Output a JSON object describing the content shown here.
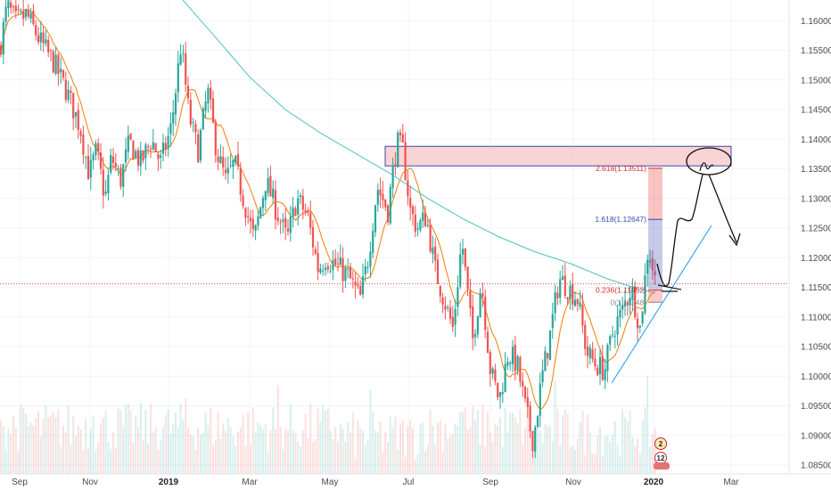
{
  "chart_data": {
    "type": "candlestick",
    "symbol_note": "",
    "y_axis": {
      "ticks": [
        1.16,
        1.155,
        1.15,
        1.145,
        1.14,
        1.135,
        1.13,
        1.125,
        1.12,
        1.115,
        1.11,
        1.105,
        1.1,
        1.095,
        1.09,
        1.085
      ],
      "labels": [
        "1.16000",
        "1.15500",
        "1.15000",
        "1.14500",
        "1.14000",
        "1.13500",
        "1.13000",
        "1.12500",
        "1.12000",
        "1.11500",
        "1.11000",
        "1.10500",
        "1.10000",
        "1.09500",
        "1.09000",
        "1.08500"
      ],
      "range": [
        1.0835,
        1.1635
      ],
      "position": "right"
    },
    "x_axis": {
      "labels": [
        "Sep",
        "Nov",
        "2019",
        "Mar",
        "May",
        "Jul",
        "Sep",
        "Nov",
        "2020",
        "Mar"
      ],
      "bold_labels": [
        "2019",
        "2020"
      ],
      "range_months": "Sep 2018 – Mar 2020"
    },
    "current_price_line": 1.1156,
    "moving_averages": [
      {
        "color": "#f57c00",
        "kind": "short"
      },
      {
        "color": "#4fc3c0",
        "kind": "long"
      }
    ],
    "price_path": [
      [
        0,
        1.1555
      ],
      [
        8,
        1.1625
      ],
      [
        18,
        1.1598
      ],
      [
        30,
        1.161
      ],
      [
        45,
        1.1565
      ],
      [
        60,
        1.153
      ],
      [
        75,
        1.148
      ],
      [
        90,
        1.142
      ],
      [
        100,
        1.134
      ],
      [
        108,
        1.138
      ],
      [
        118,
        1.13
      ],
      [
        125,
        1.137
      ],
      [
        135,
        1.133
      ],
      [
        145,
        1.1395
      ],
      [
        158,
        1.136
      ],
      [
        170,
        1.14
      ],
      [
        180,
        1.136
      ],
      [
        192,
        1.142
      ],
      [
        203,
        1.156
      ],
      [
        212,
        1.144
      ],
      [
        222,
        1.138
      ],
      [
        233,
        1.148
      ],
      [
        243,
        1.138
      ],
      [
        253,
        1.133
      ],
      [
        263,
        1.136
      ],
      [
        273,
        1.13
      ],
      [
        285,
        1.123
      ],
      [
        298,
        1.133
      ],
      [
        310,
        1.128
      ],
      [
        322,
        1.123
      ],
      [
        333,
        1.13
      ],
      [
        345,
        1.127
      ],
      [
        357,
        1.118
      ],
      [
        365,
        1.12
      ],
      [
        375,
        1.119
      ],
      [
        390,
        1.117
      ],
      [
        404,
        1.113
      ],
      [
        413,
        1.12
      ],
      [
        423,
        1.132
      ],
      [
        435,
        1.128
      ],
      [
        445,
        1.1395
      ],
      [
        452,
        1.138
      ],
      [
        460,
        1.128
      ],
      [
        468,
        1.125
      ],
      [
        478,
        1.127
      ],
      [
        488,
        1.118
      ],
      [
        498,
        1.113
      ],
      [
        508,
        1.108
      ],
      [
        518,
        1.123
      ],
      [
        530,
        1.106
      ],
      [
        540,
        1.116
      ],
      [
        550,
        1.101
      ],
      [
        560,
        1.096
      ],
      [
        570,
        1.104
      ],
      [
        580,
        1.102
      ],
      [
        590,
        1.094
      ],
      [
        598,
        1.089
      ],
      [
        607,
        1.099
      ],
      [
        617,
        1.107
      ],
      [
        627,
        1.1165
      ],
      [
        637,
        1.115
      ],
      [
        648,
        1.113
      ],
      [
        658,
        1.104
      ],
      [
        668,
        1.102
      ],
      [
        678,
        1.101
      ],
      [
        688,
        1.108
      ],
      [
        698,
        1.111
      ],
      [
        708,
        1.115
      ],
      [
        718,
        1.108
      ],
      [
        727,
        1.122
      ],
      [
        735,
        1.116
      ]
    ],
    "fibonacci": [
      {
        "level": "2.618(1.13511)",
        "price": 1.13511,
        "color": "#d32f2f"
      },
      {
        "level": "1.618(1.12647)",
        "price": 1.12647,
        "color": "#3949ab"
      },
      {
        "level": "0.236(1.11452)",
        "price": 1.11452,
        "color": "#d32f2f"
      },
      {
        "level": "0(1.11248)",
        "price": 1.11248,
        "color": "#888888"
      }
    ],
    "resistance_zone": {
      "top": 1.1388,
      "bottom": 1.1355,
      "color": "#f7c6c6",
      "border": "#3949ab"
    },
    "volume_badges": [
      {
        "value": "2"
      },
      {
        "value": "12"
      }
    ],
    "colors": {
      "bull": "#26a69a",
      "bear": "#ef5350",
      "price_line": "#ef5350",
      "grid": "#f0f3fa",
      "trendline": "#2196f3",
      "drawing": "#111111"
    }
  }
}
